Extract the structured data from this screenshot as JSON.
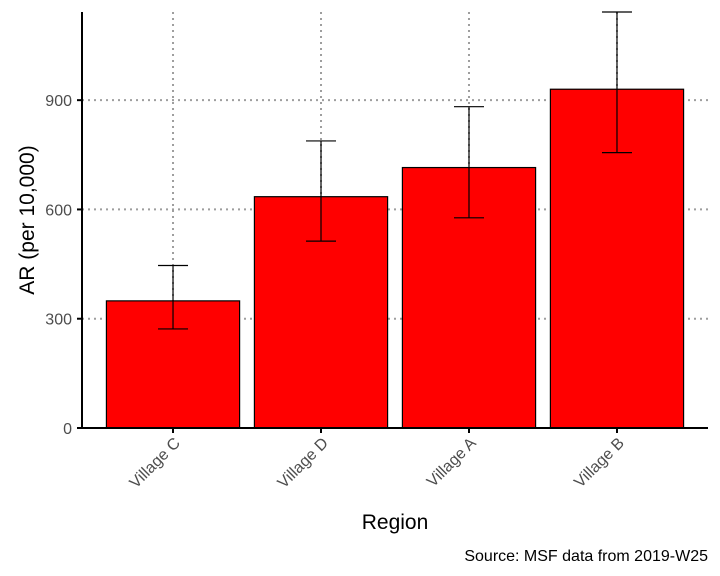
{
  "chart_data": {
    "type": "bar",
    "categories": [
      "Village C",
      "Village D",
      "Village A",
      "Village B"
    ],
    "values": [
      349,
      635,
      715,
      930
    ],
    "error_lower": [
      272,
      513,
      577,
      756
    ],
    "error_upper": [
      446,
      788,
      882,
      1142
    ],
    "xlabel": "Region",
    "ylabel": "AR (per 10,000)",
    "yticks": [
      0,
      300,
      600,
      900
    ],
    "ylim": [
      0,
      1142
    ],
    "grid": true,
    "grid_style": "dotted",
    "bar_color": "#ff0000",
    "legend": "none",
    "caption": "Source: MSF data from 2019-W25"
  }
}
